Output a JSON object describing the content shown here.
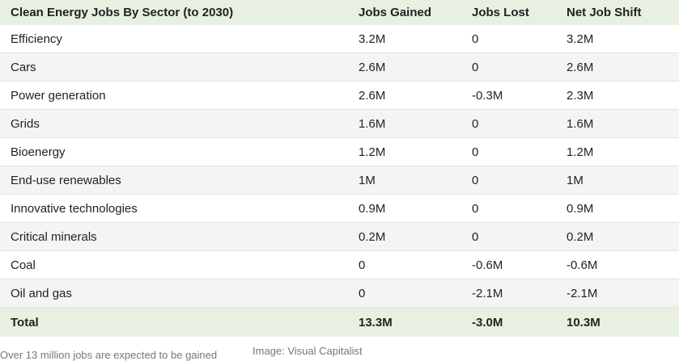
{
  "table": {
    "headers": [
      "Clean Energy Jobs By Sector (to 2030)",
      "Jobs Gained",
      "Jobs Lost",
      "Net Job Shift"
    ],
    "rows": [
      [
        "Efficiency",
        "3.2M",
        "0",
        "3.2M"
      ],
      [
        "Cars",
        "2.6M",
        "0",
        "2.6M"
      ],
      [
        "Power generation",
        "2.6M",
        "-0.3M",
        "2.3M"
      ],
      [
        "Grids",
        "1.6M",
        "0",
        "1.6M"
      ],
      [
        "Bioenergy",
        "1.2M",
        "0",
        "1.2M"
      ],
      [
        "End-use renewables",
        "1M",
        "0",
        "1M"
      ],
      [
        "Innovative technologies",
        "0.9M",
        "0",
        "0.9M"
      ],
      [
        "Critical minerals",
        "0.2M",
        "0",
        "0.2M"
      ],
      [
        "Coal",
        "0",
        "-0.6M",
        "-0.6M"
      ],
      [
        "Oil and gas",
        "0",
        "-2.1M",
        "-2.1M"
      ]
    ],
    "total": [
      "Total",
      "13.3M",
      "-3.0M",
      "10.3M"
    ]
  },
  "caption": "Over 13 million jobs are expected to be gained",
  "credit": "Image: Visual Capitalist",
  "colors": {
    "header_bg": "#e8f1e1",
    "alt_row_bg": "#f4f4f4",
    "text": "#222222"
  }
}
